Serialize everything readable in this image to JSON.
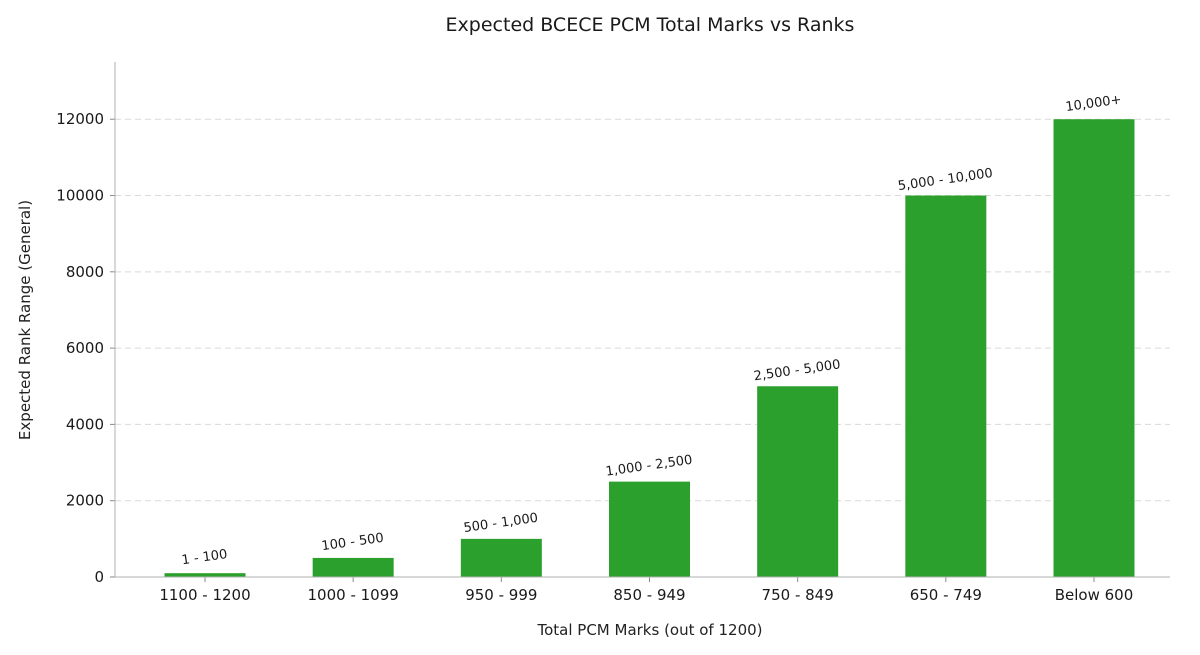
{
  "chart_data": {
    "type": "bar",
    "title": "Expected BCECE PCM Total Marks vs Ranks",
    "xlabel": "Total PCM Marks (out of 1200)",
    "ylabel": "Expected Rank Range (General)",
    "categories": [
      "1100 - 1200",
      "1000 - 1099",
      "950 - 999",
      "850 - 949",
      "750 - 849",
      "650 - 749",
      "Below 600"
    ],
    "values": [
      100,
      500,
      1000,
      2500,
      5000,
      10000,
      12000
    ],
    "data_labels": [
      "1 - 100",
      "100 - 500",
      "500 - 1,000",
      "1,000 - 2,500",
      "2,500 - 5,000",
      "5,000 - 10,000",
      "10,000+"
    ],
    "ylim": [
      0,
      13500
    ],
    "yticks": [
      0,
      2000,
      4000,
      6000,
      8000,
      10000,
      12000
    ],
    "grid": true,
    "bar_color": "#2ca02c"
  }
}
